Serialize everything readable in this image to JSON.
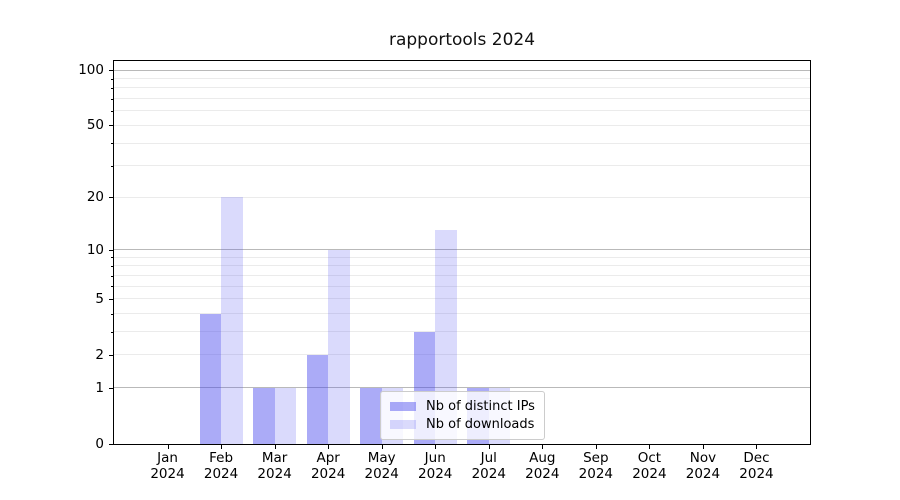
{
  "chart_data": {
    "type": "bar",
    "title": "rapportools 2024",
    "categories": [
      "Jan",
      "Feb",
      "Mar",
      "Apr",
      "May",
      "Jun",
      "Jul",
      "Aug",
      "Sep",
      "Oct",
      "Nov",
      "Dec"
    ],
    "year_label": "2024",
    "series": [
      {
        "name": "Nb of distinct IPs",
        "color": "rgba(68,68,238,0.45)",
        "values": [
          0,
          4,
          1,
          2,
          1,
          3,
          1,
          0,
          0,
          0,
          0,
          0
        ]
      },
      {
        "name": "Nb of downloads",
        "color": "rgba(68,68,238,0.2)",
        "values": [
          0,
          20,
          1,
          10,
          1,
          13,
          1,
          0,
          0,
          0,
          0,
          0
        ]
      }
    ],
    "yscale": "log1p",
    "ylim": [
      0,
      112
    ],
    "ytick_labels": [
      0,
      1,
      2,
      5,
      10,
      20,
      50,
      100
    ],
    "major_grid_values": [
      1,
      10,
      100
    ],
    "minor_grid_values": [
      2,
      3,
      4,
      5,
      6,
      7,
      8,
      9,
      20,
      30,
      40,
      50,
      60,
      70,
      80,
      90
    ],
    "grid": "on",
    "legend_position": "lower-center-right",
    "colors": {
      "major_grid": "#b9b9b9",
      "minor_grid": "#ebebeb",
      "spine": "#000000",
      "background": "#ffffff"
    }
  }
}
